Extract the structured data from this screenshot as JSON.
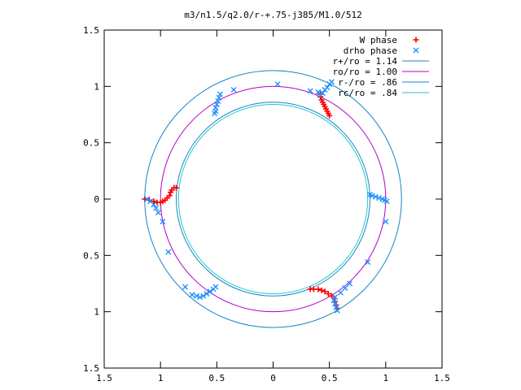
{
  "chart_data": {
    "type": "scatter",
    "title": "m3/n1.5/q2.0/r-+.75-j385/M1.0/512",
    "xlabel": "",
    "ylabel": "",
    "xlim": [
      -1.5,
      1.5
    ],
    "ylim": [
      -1.5,
      1.5
    ],
    "x_ticks": [
      -1.5,
      -1,
      -0.5,
      0,
      0.5,
      1,
      1.5
    ],
    "y_ticks": [
      -1.5,
      -1,
      -0.5,
      0,
      0.5,
      1,
      1.5
    ],
    "x_tick_labels": [
      "1.5",
      "1",
      "0.5",
      "0",
      "0.5",
      "1",
      "1.5"
    ],
    "y_tick_labels": [
      "1.5",
      "1",
      "0.5",
      "0",
      "0.5",
      "1",
      "1.5"
    ],
    "grid": false,
    "legend_position": "top-right",
    "legend": [
      {
        "label": "W phase",
        "marker": "+",
        "color": "#ff0000"
      },
      {
        "label": "drho phase",
        "marker": "x",
        "color": "#1e90ff"
      },
      {
        "label": "r+/ro = 1.14",
        "line": true,
        "color": "#1a85c8"
      },
      {
        "label": "ro/ro = 1.00",
        "line": true,
        "color": "#b400c8"
      },
      {
        "label": "r-/ro = .86",
        "line": true,
        "color": "#1a85c8"
      },
      {
        "label": "rc/ro = .84",
        "line": true,
        "color": "#20c8c8"
      }
    ],
    "circles": [
      {
        "name": "r+/ro",
        "r": 1.14,
        "color": "#1a85c8"
      },
      {
        "name": "ro/ro",
        "r": 1.0,
        "color": "#b400c8"
      },
      {
        "name": "r-/ro",
        "r": 0.86,
        "color": "#1a85c8"
      },
      {
        "name": "rc/ro",
        "r": 0.84,
        "color": "#20c8c8"
      }
    ],
    "series": [
      {
        "name": "W phase",
        "color": "#ff0000",
        "marker": "+",
        "points": [
          [
            -1.14,
            0.0
          ],
          [
            -1.1,
            -0.01
          ],
          [
            -1.06,
            -0.02
          ],
          [
            -1.03,
            -0.03
          ],
          [
            -1.0,
            -0.03
          ],
          [
            -0.98,
            -0.02
          ],
          [
            -0.96,
            -0.01
          ],
          [
            -0.94,
            0.01
          ],
          [
            -0.92,
            0.03
          ],
          [
            -0.91,
            0.06
          ],
          [
            -0.9,
            0.08
          ],
          [
            -0.88,
            0.1
          ],
          [
            -0.86,
            0.1
          ],
          [
            0.42,
            0.93
          ],
          [
            0.42,
            0.91
          ],
          [
            0.43,
            0.88
          ],
          [
            0.44,
            0.86
          ],
          [
            0.45,
            0.84
          ],
          [
            0.46,
            0.82
          ],
          [
            0.47,
            0.8
          ],
          [
            0.48,
            0.78
          ],
          [
            0.49,
            0.76
          ],
          [
            0.5,
            0.74
          ],
          [
            0.33,
            -0.8
          ],
          [
            0.36,
            -0.8
          ],
          [
            0.4,
            -0.8
          ],
          [
            0.43,
            -0.81
          ],
          [
            0.46,
            -0.82
          ],
          [
            0.49,
            -0.84
          ],
          [
            0.52,
            -0.86
          ],
          [
            0.54,
            -0.88
          ],
          [
            0.55,
            -0.91
          ],
          [
            0.56,
            -0.94
          ],
          [
            0.57,
            -0.97
          ]
        ]
      },
      {
        "name": "drho phase",
        "color": "#1e90ff",
        "marker": "x",
        "points": [
          [
            -1.12,
            0.0
          ],
          [
            -1.09,
            -0.02
          ],
          [
            -1.06,
            -0.05
          ],
          [
            -1.04,
            -0.08
          ],
          [
            -1.02,
            -0.12
          ],
          [
            -0.98,
            -0.2
          ],
          [
            -0.93,
            -0.47
          ],
          [
            -0.78,
            -0.78
          ],
          [
            -0.72,
            -0.85
          ],
          [
            -0.68,
            -0.86
          ],
          [
            -0.65,
            -0.87
          ],
          [
            -0.62,
            -0.86
          ],
          [
            -0.59,
            -0.84
          ],
          [
            -0.56,
            -0.82
          ],
          [
            -0.53,
            -0.8
          ],
          [
            -0.51,
            -0.78
          ],
          [
            -0.52,
            0.76
          ],
          [
            -0.51,
            0.78
          ],
          [
            -0.51,
            0.81
          ],
          [
            -0.5,
            0.84
          ],
          [
            -0.49,
            0.87
          ],
          [
            -0.48,
            0.9
          ],
          [
            -0.47,
            0.93
          ],
          [
            -0.35,
            0.97
          ],
          [
            0.04,
            1.02
          ],
          [
            0.33,
            0.96
          ],
          [
            0.4,
            0.95
          ],
          [
            0.42,
            0.92
          ],
          [
            0.44,
            0.94
          ],
          [
            0.46,
            0.97
          ],
          [
            0.48,
            0.99
          ],
          [
            0.5,
            1.02
          ],
          [
            0.52,
            1.04
          ],
          [
            0.86,
            0.04
          ],
          [
            0.88,
            0.03
          ],
          [
            0.91,
            0.02
          ],
          [
            0.94,
            0.01
          ],
          [
            0.97,
            0.0
          ],
          [
            0.99,
            -0.01
          ],
          [
            1.01,
            -0.02
          ],
          [
            1.0,
            -0.2
          ],
          [
            0.84,
            -0.56
          ],
          [
            0.68,
            -0.75
          ],
          [
            0.64,
            -0.79
          ],
          [
            0.6,
            -0.83
          ],
          [
            0.55,
            -0.87
          ],
          [
            0.54,
            -0.9
          ],
          [
            0.55,
            -0.93
          ],
          [
            0.56,
            -0.96
          ],
          [
            0.57,
            -0.99
          ]
        ]
      }
    ]
  }
}
